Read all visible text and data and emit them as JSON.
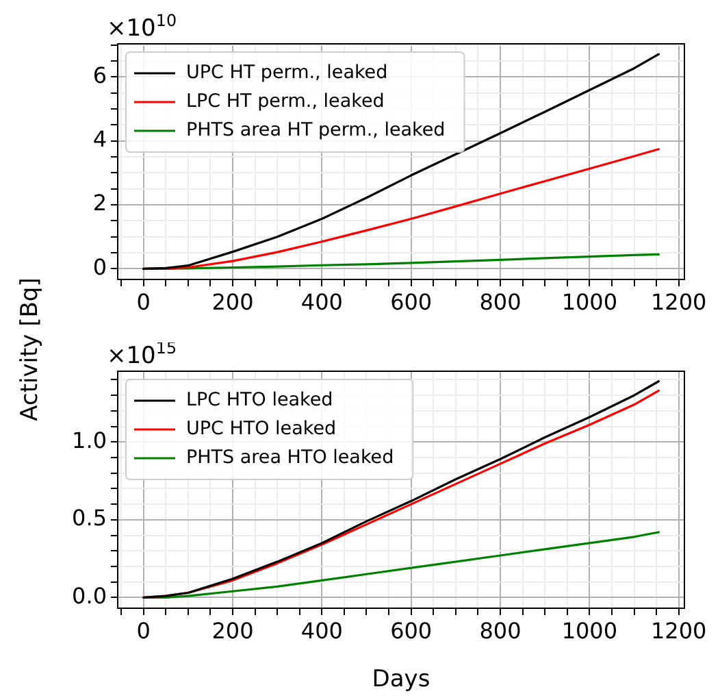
{
  "chart_data": [
    {
      "type": "line",
      "ylabel": "Activity [Bq]",
      "annotations": [
        "×10$^{10}$"
      ],
      "legend": "top left",
      "grid": true,
      "x": [
        0,
        50,
        100,
        200,
        300,
        400,
        500,
        600,
        700,
        800,
        900,
        1000,
        1100,
        1155
      ],
      "series": [
        {
          "name": "UPC HT perm., leaked",
          "color": "#000000",
          "values": [
            0,
            0.02,
            0.1,
            0.53,
            1.0,
            1.56,
            2.22,
            2.92,
            3.58,
            4.24,
            4.91,
            5.59,
            6.27,
            6.71
          ]
        },
        {
          "name": "LPC HT perm., leaked",
          "color": "#ff0000",
          "values": [
            0,
            0.01,
            0.04,
            0.24,
            0.52,
            0.85,
            1.2,
            1.56,
            1.95,
            2.35,
            2.74,
            3.13,
            3.52,
            3.74
          ]
        },
        {
          "name": "PHTS area HT perm., leaked",
          "color": "#008000",
          "values": [
            0,
            0,
            0.01,
            0.04,
            0.07,
            0.11,
            0.14,
            0.18,
            0.23,
            0.28,
            0.33,
            0.38,
            0.43,
            0.45
          ]
        }
      ],
      "xlim": [
        -57.75,
        1212.75
      ],
      "xticks": [
        {
          "value": -50,
          "label": null
        },
        0,
        {
          "value": 50,
          "label": null
        },
        {
          "value": 100,
          "label": null
        },
        {
          "value": 150,
          "label": null
        },
        200,
        {
          "value": 250,
          "label": null
        },
        {
          "value": 300,
          "label": null
        },
        {
          "value": 350,
          "label": null
        },
        400,
        {
          "value": 450,
          "label": null
        },
        {
          "value": 500,
          "label": null
        },
        {
          "value": 550,
          "label": null
        },
        600,
        {
          "value": 650,
          "label": null
        },
        {
          "value": 700,
          "label": null
        },
        {
          "value": 750,
          "label": null
        },
        800,
        {
          "value": 850,
          "label": null
        },
        {
          "value": 900,
          "label": null
        },
        {
          "value": 950,
          "label": null
        },
        1000,
        {
          "value": 1050,
          "label": null
        },
        {
          "value": 1100,
          "label": null
        },
        {
          "value": 1150,
          "label": null
        },
        1200
      ],
      "ylim": [
        -0.335,
        7.035
      ],
      "yticks": [
        0,
        {
          "value": 0.5,
          "label": null
        },
        {
          "value": 1,
          "label": null
        },
        {
          "value": 1.5,
          "label": null
        },
        2,
        {
          "value": 2.5,
          "label": null
        },
        {
          "value": 3,
          "label": null
        },
        {
          "value": 3.5,
          "label": null
        },
        4,
        {
          "value": 4.5,
          "label": null
        },
        {
          "value": 5,
          "label": null
        },
        {
          "value": 5.5,
          "label": null
        },
        6,
        {
          "value": 6.5,
          "label": null
        },
        {
          "value": 7,
          "label": null
        }
      ]
    },
    {
      "type": "line",
      "xlabel": "Days",
      "annotations": [
        "×10$^{15}$"
      ],
      "legend": "top left",
      "grid": true,
      "x": [
        0,
        50,
        100,
        200,
        300,
        400,
        500,
        600,
        700,
        800,
        900,
        1000,
        1100,
        1155
      ],
      "series": [
        {
          "name": "LPC HTO leaked",
          "color": "#000000",
          "values": [
            0,
            0.01,
            0.03,
            0.12,
            0.23,
            0.35,
            0.49,
            0.62,
            0.76,
            0.89,
            1.03,
            1.16,
            1.3,
            1.39
          ]
        },
        {
          "name": "UPC HTO leaked",
          "color": "#ff0000",
          "values": [
            0,
            0.01,
            0.03,
            0.11,
            0.22,
            0.34,
            0.47,
            0.6,
            0.73,
            0.86,
            0.99,
            1.11,
            1.24,
            1.33
          ]
        },
        {
          "name": "PHTS area HTO leaked",
          "color": "#008000",
          "values": [
            0,
            0,
            0.01,
            0.04,
            0.07,
            0.11,
            0.15,
            0.19,
            0.23,
            0.27,
            0.31,
            0.35,
            0.39,
            0.42
          ]
        }
      ],
      "xlim": [
        -57.75,
        1212.75
      ],
      "xticks": [
        {
          "value": -50,
          "label": null
        },
        0,
        {
          "value": 50,
          "label": null
        },
        {
          "value": 100,
          "label": null
        },
        {
          "value": 150,
          "label": null
        },
        200,
        {
          "value": 250,
          "label": null
        },
        {
          "value": 300,
          "label": null
        },
        {
          "value": 350,
          "label": null
        },
        400,
        {
          "value": 450,
          "label": null
        },
        {
          "value": 500,
          "label": null
        },
        {
          "value": 550,
          "label": null
        },
        600,
        {
          "value": 650,
          "label": null
        },
        {
          "value": 700,
          "label": null
        },
        {
          "value": 750,
          "label": null
        },
        800,
        {
          "value": 850,
          "label": null
        },
        {
          "value": 900,
          "label": null
        },
        {
          "value": 950,
          "label": null
        },
        1000,
        {
          "value": 1050,
          "label": null
        },
        {
          "value": 1100,
          "label": null
        },
        {
          "value": 1150,
          "label": null
        },
        1200
      ],
      "ylim": [
        -0.069,
        1.455
      ],
      "yticks": [
        {
          "value": 0,
          "label": "0.0"
        },
        {
          "value": 0.1,
          "label": null
        },
        {
          "value": 0.2,
          "label": null
        },
        {
          "value": 0.3,
          "label": null
        },
        {
          "value": 0.4,
          "label": null
        },
        {
          "value": 0.5,
          "label": "0.5"
        },
        {
          "value": 0.6,
          "label": null
        },
        {
          "value": 0.7,
          "label": null
        },
        {
          "value": 0.8,
          "label": null
        },
        {
          "value": 0.9,
          "label": null
        },
        {
          "value": 1,
          "label": "1.0"
        },
        {
          "value": 1.1,
          "label": null
        },
        {
          "value": 1.2,
          "label": null
        },
        {
          "value": 1.3,
          "label": null
        },
        {
          "value": 1.4,
          "label": null
        }
      ]
    }
  ]
}
